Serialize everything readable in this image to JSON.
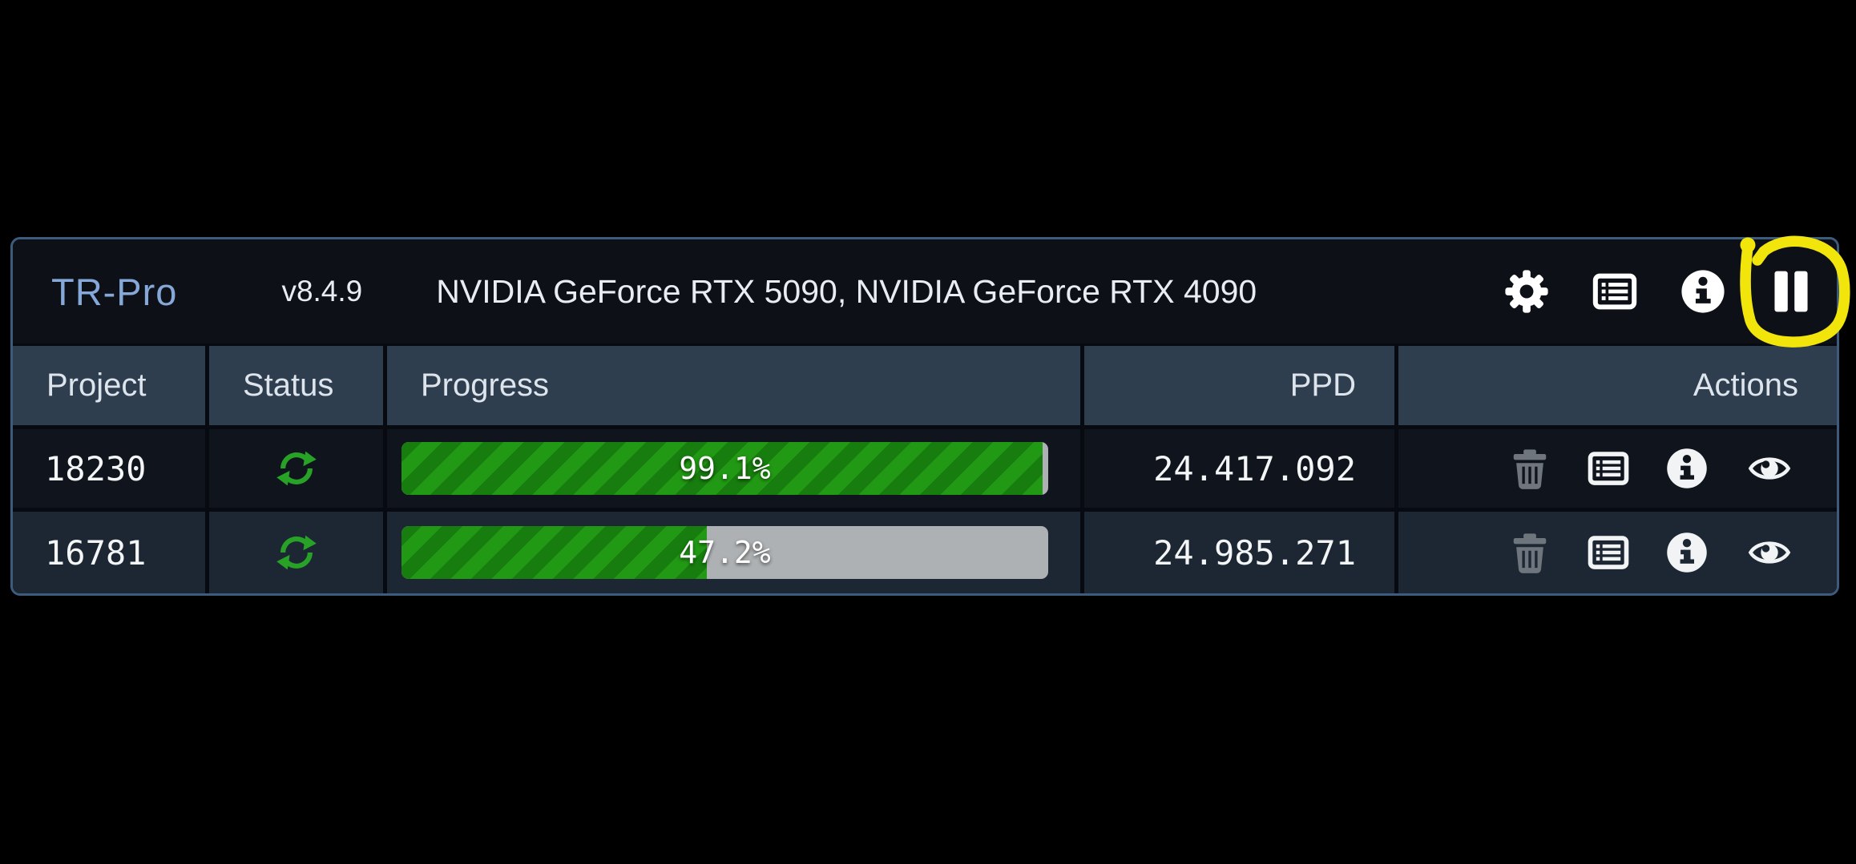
{
  "window": {
    "title": "TR-Pro",
    "version": "v8.4.9",
    "gpus": "NVIDIA GeForce RTX 5090, NVIDIA GeForce RTX 4090",
    "toolbar": {
      "settings": "settings",
      "log": "log",
      "about": "about",
      "pause": "pause"
    }
  },
  "table": {
    "headers": {
      "project": "Project",
      "status": "Status",
      "progress": "Progress",
      "ppd": "PPD",
      "actions": "Actions"
    },
    "rows": [
      {
        "project": "18230",
        "status_icon": "sync-icon",
        "progress_pct": 99.1,
        "progress_label": "99.1%",
        "ppd": "24.417.092",
        "action_icons": [
          "trash-icon",
          "log-icon",
          "info-icon",
          "eye-icon"
        ]
      },
      {
        "project": "16781",
        "status_icon": "sync-icon",
        "progress_pct": 47.2,
        "progress_label": "47.2%",
        "ppd": "24.985.271",
        "action_icons": [
          "trash-icon",
          "log-icon",
          "info-icon",
          "eye-icon"
        ]
      }
    ]
  },
  "annotation": {
    "type": "hand-drawn-circle",
    "target": "pause-button"
  },
  "colors": {
    "accent_title": "#86a8d8",
    "header_bg": "#0d1117",
    "thead_bg": "#2e3e4f",
    "row_dark": "#10151d",
    "row_navy": "#1c2733",
    "panel_border": "#3d5b7c",
    "bar_green_dark": "#177d0e",
    "bar_green_light": "#229914",
    "bar_track": "#aeb1b3",
    "status_green": "#27a227",
    "annotation_yellow": "#f2e50c"
  }
}
